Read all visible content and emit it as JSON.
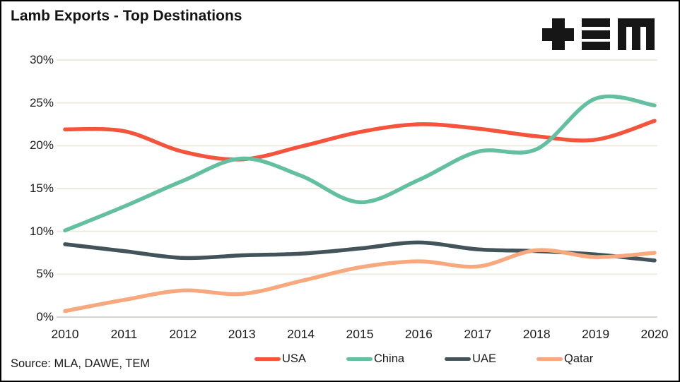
{
  "header": {
    "title": "Lamb Exports - Top Destinations",
    "logo": "TEM"
  },
  "source": {
    "label": "Source: MLA, DAWE, TEM"
  },
  "theme": {
    "gridline": "#EFEADF",
    "zero_line": "#D7D7D3",
    "text": "#1B1B1B",
    "logo_color": "#161616",
    "background": "#FFFFFF",
    "border": "#000000"
  },
  "chart_data": {
    "type": "line",
    "title": "Lamb Exports - Top Destinations",
    "line_style": "smooth",
    "grid": "horizontal",
    "legend_position": "bottom",
    "x": [
      2010,
      2011,
      2012,
      2013,
      2014,
      2015,
      2016,
      2017,
      2018,
      2019,
      2020
    ],
    "x_tick_labels": [
      "2010",
      "2011",
      "2012",
      "2013",
      "2014",
      "2015",
      "2016",
      "2017",
      "2018",
      "2019",
      "2020"
    ],
    "ylim": [
      0,
      30
    ],
    "y_ticks": [
      0,
      5,
      10,
      15,
      20,
      25,
      30
    ],
    "y_tick_labels": [
      "0%",
      "5%",
      "10%",
      "15%",
      "20%",
      "25%",
      "30%"
    ],
    "ylabel": "",
    "xlabel": "",
    "unit": "percent",
    "series": [
      {
        "name": "USA",
        "color": "#F4533C",
        "values": [
          21.9,
          21.7,
          19.3,
          18.4,
          19.9,
          21.6,
          22.5,
          22.0,
          21.1,
          20.7,
          22.9
        ]
      },
      {
        "name": "China",
        "color": "#62C0A0",
        "values": [
          10.1,
          12.9,
          15.9,
          18.5,
          16.5,
          13.4,
          16.0,
          19.3,
          19.6,
          25.5,
          24.7
        ]
      },
      {
        "name": "UAE",
        "color": "#42545A",
        "values": [
          8.5,
          7.7,
          6.9,
          7.2,
          7.4,
          8.0,
          8.7,
          7.9,
          7.7,
          7.3,
          6.6
        ]
      },
      {
        "name": "Qatar",
        "color": "#F8A87D",
        "values": [
          0.7,
          2.0,
          3.1,
          2.7,
          4.2,
          5.8,
          6.5,
          5.9,
          7.8,
          7.0,
          7.5
        ]
      }
    ]
  }
}
